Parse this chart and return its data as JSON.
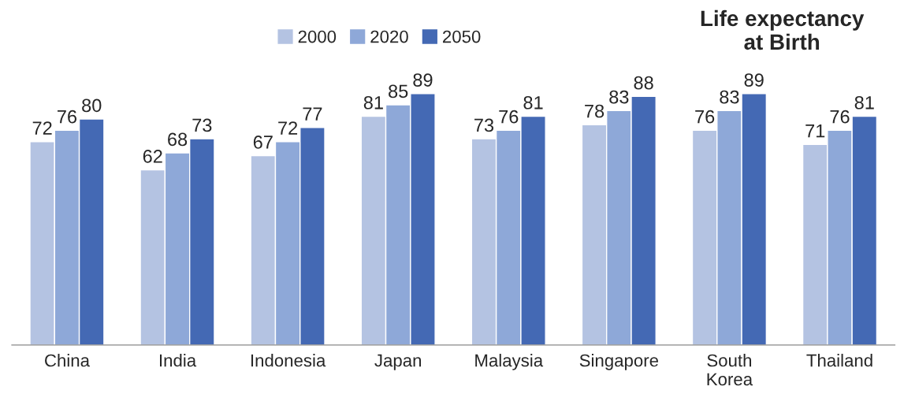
{
  "chart_data": {
    "type": "bar",
    "title": "Life expectancy\nat Birth",
    "categories": [
      "China",
      "India",
      "Indonesia",
      "Japan",
      "Malaysia",
      "Singapore",
      "South\nKorea",
      "Thailand"
    ],
    "series": [
      {
        "name": "2000",
        "color": "#b4c3e2",
        "values": [
          72,
          62,
          67,
          81,
          73,
          78,
          76,
          71
        ]
      },
      {
        "name": "2020",
        "color": "#8ea8d8",
        "values": [
          76,
          68,
          72,
          85,
          76,
          83,
          83,
          76
        ]
      },
      {
        "name": "2050",
        "color": "#4469b4",
        "values": [
          80,
          73,
          77,
          89,
          81,
          88,
          89,
          81
        ]
      }
    ],
    "data_labels": true,
    "legend": "top",
    "grid": false
  }
}
